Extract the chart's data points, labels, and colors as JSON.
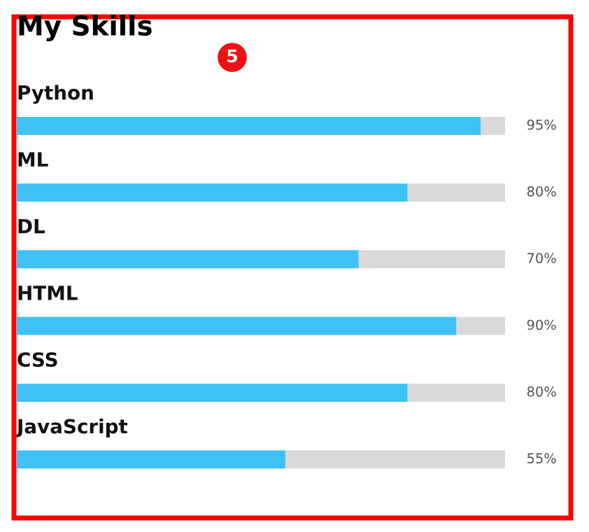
{
  "chart_data": {
    "type": "bar",
    "orientation": "horizontal",
    "title": "My Skills",
    "categories": [
      "Python",
      "ML",
      "DL",
      "HTML",
      "CSS",
      "JavaScript"
    ],
    "values": [
      95,
      80,
      70,
      90,
      80,
      55
    ],
    "value_labels": [
      "95%",
      "80%",
      "70%",
      "90%",
      "80%",
      "55%"
    ],
    "color": "#3fc1f5",
    "xlim": [
      0,
      100
    ],
    "annotations": [
      "5"
    ]
  }
}
